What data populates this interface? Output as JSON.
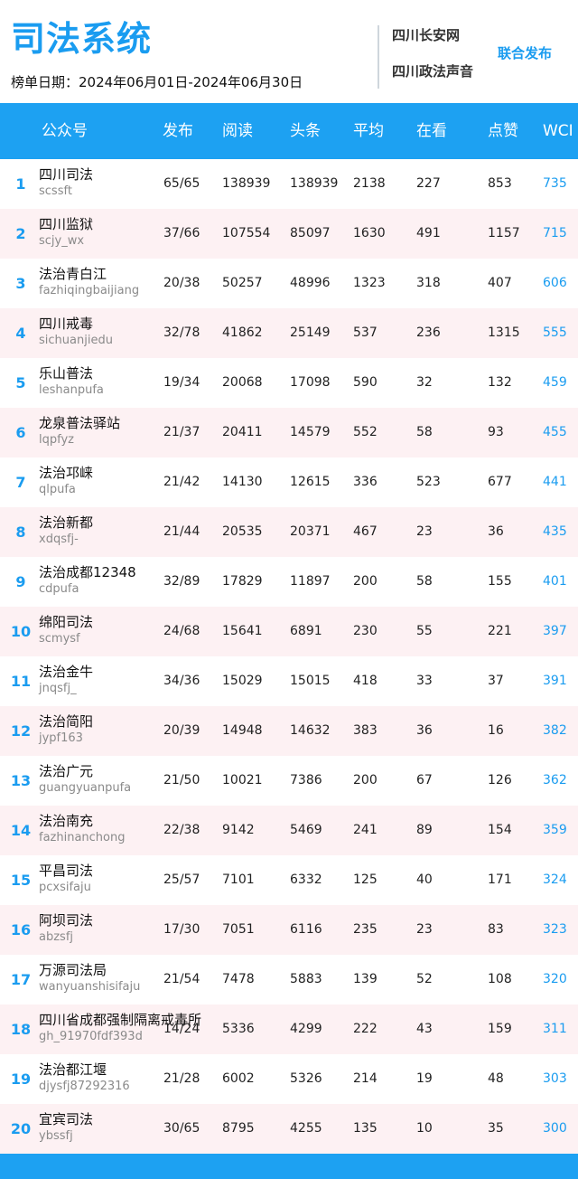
{
  "header": {
    "title": "司法系统",
    "date_range": "榜单日期：2024年06月01日-2024年06月30日",
    "source_1": "四川长安网",
    "source_2": "四川政法声音",
    "joint_publish": "联合发布"
  },
  "table": {
    "columns": [
      "公众号",
      "发布",
      "阅读",
      "头条",
      "平均",
      "在看",
      "点赞",
      "WCI"
    ],
    "rows": [
      {
        "rank": "1",
        "name": "四川司法",
        "account": "scssft",
        "posts": "65/65",
        "reads": "138939",
        "headline": "138939",
        "avg": "2138",
        "watching": "227",
        "likes": "853",
        "wci": "735"
      },
      {
        "rank": "2",
        "name": "四川监狱",
        "account": "scjy_wx",
        "posts": "37/66",
        "reads": "107554",
        "headline": "85097",
        "avg": "1630",
        "watching": "491",
        "likes": "1157",
        "wci": "715"
      },
      {
        "rank": "3",
        "name": "法治青白江",
        "account": "fazhiqingbaijiang",
        "posts": "20/38",
        "reads": "50257",
        "headline": "48996",
        "avg": "1323",
        "watching": "318",
        "likes": "407",
        "wci": "606"
      },
      {
        "rank": "4",
        "name": "四川戒毒",
        "account": "sichuanjiedu",
        "posts": "32/78",
        "reads": "41862",
        "headline": "25149",
        "avg": "537",
        "watching": "236",
        "likes": "1315",
        "wci": "555"
      },
      {
        "rank": "5",
        "name": "乐山普法",
        "account": "leshanpufa",
        "posts": "19/34",
        "reads": "20068",
        "headline": "17098",
        "avg": "590",
        "watching": "32",
        "likes": "132",
        "wci": "459"
      },
      {
        "rank": "6",
        "name": "龙泉普法驿站",
        "account": "lqpfyz",
        "posts": "21/37",
        "reads": "20411",
        "headline": "14579",
        "avg": "552",
        "watching": "58",
        "likes": "93",
        "wci": "455"
      },
      {
        "rank": "7",
        "name": "法治邛崃",
        "account": "qlpufa",
        "posts": "21/42",
        "reads": "14130",
        "headline": "12615",
        "avg": "336",
        "watching": "523",
        "likes": "677",
        "wci": "441"
      },
      {
        "rank": "8",
        "name": "法治新都",
        "account": "xdqsfj-",
        "posts": "21/44",
        "reads": "20535",
        "headline": "20371",
        "avg": "467",
        "watching": "23",
        "likes": "36",
        "wci": "435"
      },
      {
        "rank": "9",
        "name": "法治成都12348",
        "account": "cdpufa",
        "posts": "32/89",
        "reads": "17829",
        "headline": "11897",
        "avg": "200",
        "watching": "58",
        "likes": "155",
        "wci": "401"
      },
      {
        "rank": "10",
        "name": "绵阳司法",
        "account": "scmysf",
        "posts": "24/68",
        "reads": "15641",
        "headline": "6891",
        "avg": "230",
        "watching": "55",
        "likes": "221",
        "wci": "397"
      },
      {
        "rank": "11",
        "name": "法治金牛",
        "account": "jnqsfj_",
        "posts": "34/36",
        "reads": "15029",
        "headline": "15015",
        "avg": "418",
        "watching": "33",
        "likes": "37",
        "wci": "391"
      },
      {
        "rank": "12",
        "name": "法治简阳",
        "account": "jypf163",
        "posts": "20/39",
        "reads": "14948",
        "headline": "14632",
        "avg": "383",
        "watching": "36",
        "likes": "16",
        "wci": "382"
      },
      {
        "rank": "13",
        "name": "法治广元",
        "account": "guangyuanpufa",
        "posts": "21/50",
        "reads": "10021",
        "headline": "7386",
        "avg": "200",
        "watching": "67",
        "likes": "126",
        "wci": "362"
      },
      {
        "rank": "14",
        "name": "法治南充",
        "account": "fazhinanchong",
        "posts": "22/38",
        "reads": "9142",
        "headline": "5469",
        "avg": "241",
        "watching": "89",
        "likes": "154",
        "wci": "359"
      },
      {
        "rank": "15",
        "name": "平昌司法",
        "account": "pcxsifaju",
        "posts": "25/57",
        "reads": "7101",
        "headline": "6332",
        "avg": "125",
        "watching": "40",
        "likes": "171",
        "wci": "324"
      },
      {
        "rank": "16",
        "name": "阿坝司法",
        "account": "abzsfj",
        "posts": "17/30",
        "reads": "7051",
        "headline": "6116",
        "avg": "235",
        "watching": "23",
        "likes": "83",
        "wci": "323"
      },
      {
        "rank": "17",
        "name": "万源司法局",
        "account": "wanyuanshisifaju",
        "posts": "21/54",
        "reads": "7478",
        "headline": "5883",
        "avg": "139",
        "watching": "52",
        "likes": "108",
        "wci": "320"
      },
      {
        "rank": "18",
        "name": "四川省成都强制隔离戒毒所",
        "account": "gh_91970fdf393d",
        "posts": "14/24",
        "reads": "5336",
        "headline": "4299",
        "avg": "222",
        "watching": "43",
        "likes": "159",
        "wci": "311"
      },
      {
        "rank": "19",
        "name": "法治都江堰",
        "account": "djysfj87292316",
        "posts": "21/28",
        "reads": "6002",
        "headline": "5326",
        "avg": "214",
        "watching": "19",
        "likes": "48",
        "wci": "303"
      },
      {
        "rank": "20",
        "name": "宜宾司法",
        "account": "ybssfj",
        "posts": "30/65",
        "reads": "8795",
        "headline": "4255",
        "avg": "135",
        "watching": "10",
        "likes": "35",
        "wci": "300"
      }
    ]
  },
  "colors": {
    "accent": "#1da1f2",
    "row_alt": "#fdf1f3"
  }
}
